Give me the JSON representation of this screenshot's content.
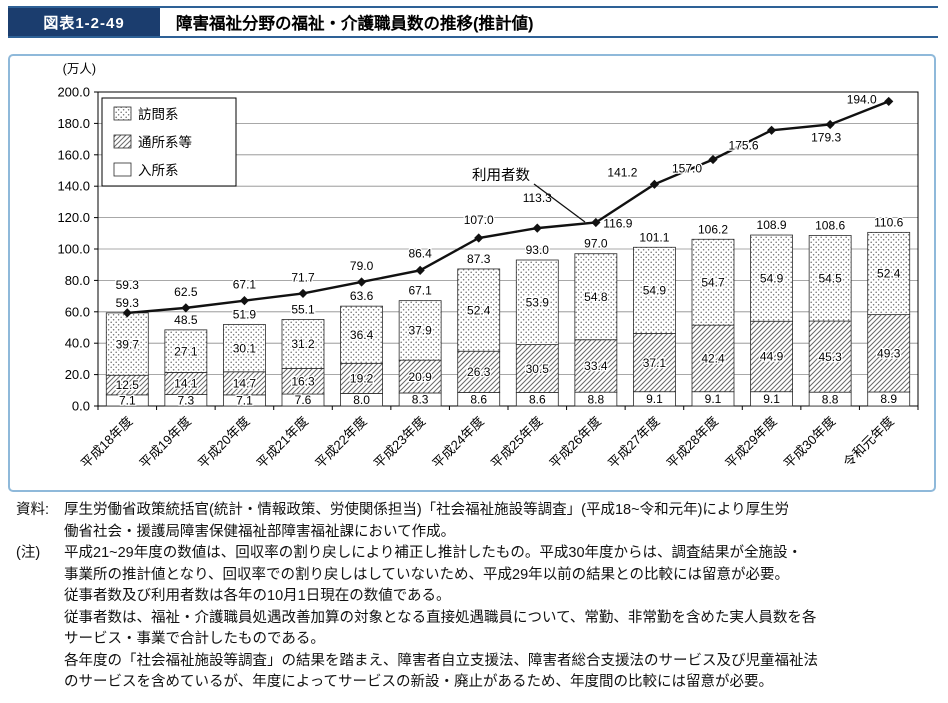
{
  "header": {
    "figure_label": "図表1-2-49",
    "title": "障害福祉分野の福祉・介護職員数の推移(推計値)"
  },
  "colors": {
    "figure_badge_bg": "#1b3d6e",
    "header_rule": "#2e6196",
    "panel_border": "#8fb9da",
    "line_color": "#111111",
    "bar_outline": "#2a2a2a",
    "grid_color": "#8c8c8c",
    "hatch_ink": "#6a6a6a"
  },
  "chart_data": {
    "type": "bar",
    "stacked": true,
    "combo_line": true,
    "unit_label": "(万人)",
    "ylim": [
      0,
      200
    ],
    "ytick_step": 20,
    "grid": "horizontal",
    "categories": [
      "平成18年度",
      "平成19年度",
      "平成20年度",
      "平成21年度",
      "平成22年度",
      "平成23年度",
      "平成24年度",
      "平成25年度",
      "平成26年度",
      "平成27年度",
      "平成28年度",
      "平成29年度",
      "平成30年度",
      "令和元年度"
    ],
    "bar_series": [
      {
        "name": "入所系",
        "pattern": "plain",
        "values": [
          7.1,
          7.3,
          7.1,
          7.6,
          8.0,
          8.3,
          8.6,
          8.6,
          8.8,
          9.1,
          9.1,
          9.1,
          8.8,
          8.9
        ]
      },
      {
        "name": "通所系等",
        "pattern": "diagonal-hatch",
        "values": [
          12.5,
          14.1,
          14.7,
          16.3,
          19.2,
          20.9,
          26.3,
          30.5,
          33.4,
          37.1,
          42.4,
          44.9,
          45.3,
          49.3
        ]
      },
      {
        "name": "訪問系",
        "pattern": "dots",
        "values": [
          39.7,
          27.1,
          30.1,
          31.2,
          36.4,
          37.9,
          52.4,
          53.9,
          54.8,
          54.9,
          54.7,
          54.9,
          54.5,
          52.4
        ]
      }
    ],
    "totals": [
      59.3,
      48.5,
      51.9,
      55.1,
      63.6,
      67.1,
      87.3,
      93.0,
      97.0,
      101.1,
      106.2,
      108.9,
      108.6,
      110.6
    ],
    "line_series": {
      "name": "利用者数",
      "values": [
        59.3,
        62.5,
        67.1,
        71.7,
        79.0,
        86.4,
        107.0,
        113.3,
        116.9,
        141.2,
        157.0,
        175.6,
        179.3,
        194.0
      ]
    },
    "legend": {
      "position": "top-left",
      "entries": [
        {
          "label": "訪問系",
          "pattern": "dots"
        },
        {
          "label": "通所系等",
          "pattern": "diagonal-hatch"
        },
        {
          "label": "入所系",
          "pattern": "plain"
        }
      ]
    },
    "annotation": "利用者数"
  },
  "footer": {
    "rows": [
      {
        "label": "資料:",
        "text": "厚生労働省政策統括官(統計・情報政策、労使関係担当)「社会福祉施設等調査」(平成18~令和元年)により厚生労"
      },
      {
        "label": "",
        "text": "働省社会・援護局障害保健福祉部障害福祉課において作成。"
      },
      {
        "label": "(注)",
        "text": "平成21~29年度の数値は、回収率の割り戻しにより補正し推計したもの。平成30年度からは、調査結果が全施設・"
      },
      {
        "label": "",
        "text": "事業所の推計値となり、回収率での割り戻しはしていないため、平成29年以前の結果との比較には留意が必要。"
      },
      {
        "label": "",
        "text": "従事者数及び利用者数は各年の10月1日現在の数値である。"
      },
      {
        "label": "",
        "text": "従事者数は、福祉・介護職員処遇改善加算の対象となる直接処遇職員について、常勤、非常勤を含めた実人員数を各"
      },
      {
        "label": "",
        "text": "サービス・事業で合計したものである。"
      },
      {
        "label": "",
        "text": "各年度の「社会福祉施設等調査」の結果を踏まえ、障害者自立支援法、障害者総合支援法のサービス及び児童福祉法"
      },
      {
        "label": "",
        "text": "のサービスを含めているが、年度によってサービスの新設・廃止があるため、年度間の比較には留意が必要。"
      }
    ]
  }
}
